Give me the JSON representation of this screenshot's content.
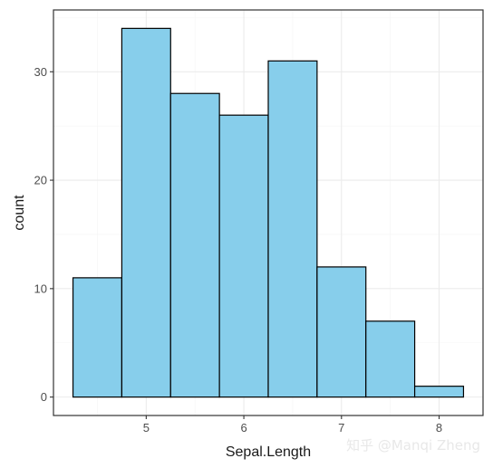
{
  "chart_data": {
    "type": "bar",
    "subtype": "histogram",
    "title": "",
    "xlabel": "Sepal.Length",
    "ylabel": "count",
    "bins": [
      {
        "x0": 4.25,
        "x1": 4.75,
        "count": 11
      },
      {
        "x0": 4.75,
        "x1": 5.25,
        "count": 34
      },
      {
        "x0": 5.25,
        "x1": 5.75,
        "count": 28
      },
      {
        "x0": 5.75,
        "x1": 6.25,
        "count": 26
      },
      {
        "x0": 6.25,
        "x1": 6.75,
        "count": 31
      },
      {
        "x0": 6.75,
        "x1": 7.25,
        "count": 12
      },
      {
        "x0": 7.25,
        "x1": 7.75,
        "count": 7
      },
      {
        "x0": 7.75,
        "x1": 8.25,
        "count": 1
      }
    ],
    "xlim": [
      4.05,
      8.45
    ],
    "ylim": [
      -1.7,
      35.7
    ],
    "x_ticks": [
      5,
      6,
      7,
      8
    ],
    "y_ticks": [
      0,
      10,
      20,
      30
    ],
    "grid": true,
    "bar_color": "#87CEEB",
    "border_color": "#000000"
  },
  "watermark": "知乎 @Manqi Zheng"
}
